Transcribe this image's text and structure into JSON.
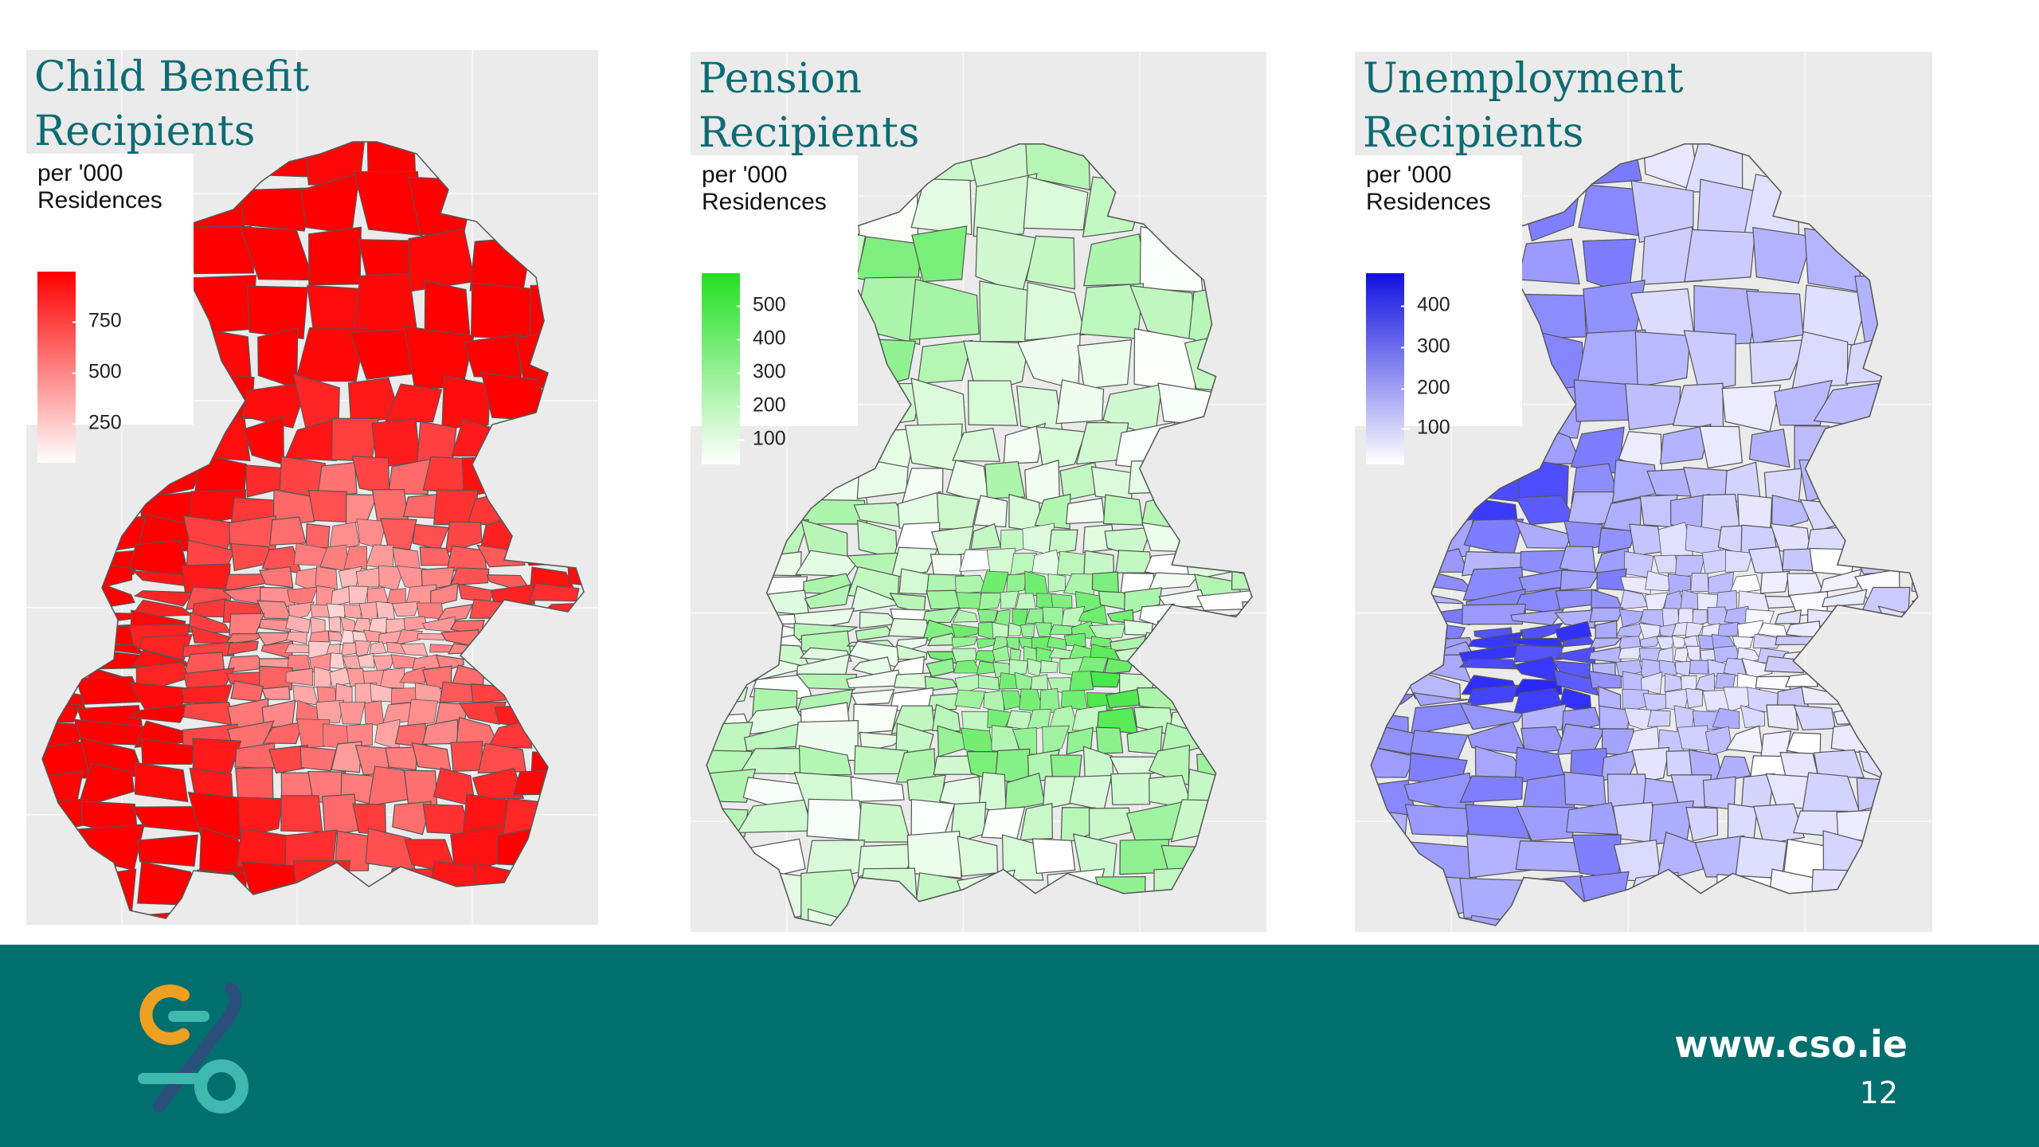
{
  "maps": [
    {
      "title_line1": "Child Benefit",
      "title_line2": "Recipients",
      "legend_title_line1": "per '000",
      "legend_title_line2": "Residences",
      "legend_ticks": [
        "750",
        "500",
        "250"
      ],
      "color_low": "#ffffff",
      "color_high": "#ff0000"
    },
    {
      "title_line1": "Pension",
      "title_line2": "Recipients",
      "legend_title_line1": "per '000",
      "legend_title_line2": "Residences",
      "legend_ticks": [
        "500",
        "400",
        "300",
        "200",
        "100"
      ],
      "color_low": "#ffffff",
      "color_high": "#00e000"
    },
    {
      "title_line1": "Unemployment",
      "title_line2": "Recipients",
      "legend_title_line1": "per '000",
      "legend_title_line2": "Residences",
      "legend_ticks": [
        "400",
        "300",
        "200",
        "100"
      ],
      "color_low": "#ffffff",
      "color_high": "#0000ff"
    }
  ],
  "footer": {
    "url": "www.cso.ie",
    "page_number": "12",
    "background": "#006f6e"
  },
  "logo": {
    "icon": "cso-logo-icon",
    "colors": [
      "#f0a020",
      "#3fb8b0",
      "#2a4f7a"
    ]
  }
}
